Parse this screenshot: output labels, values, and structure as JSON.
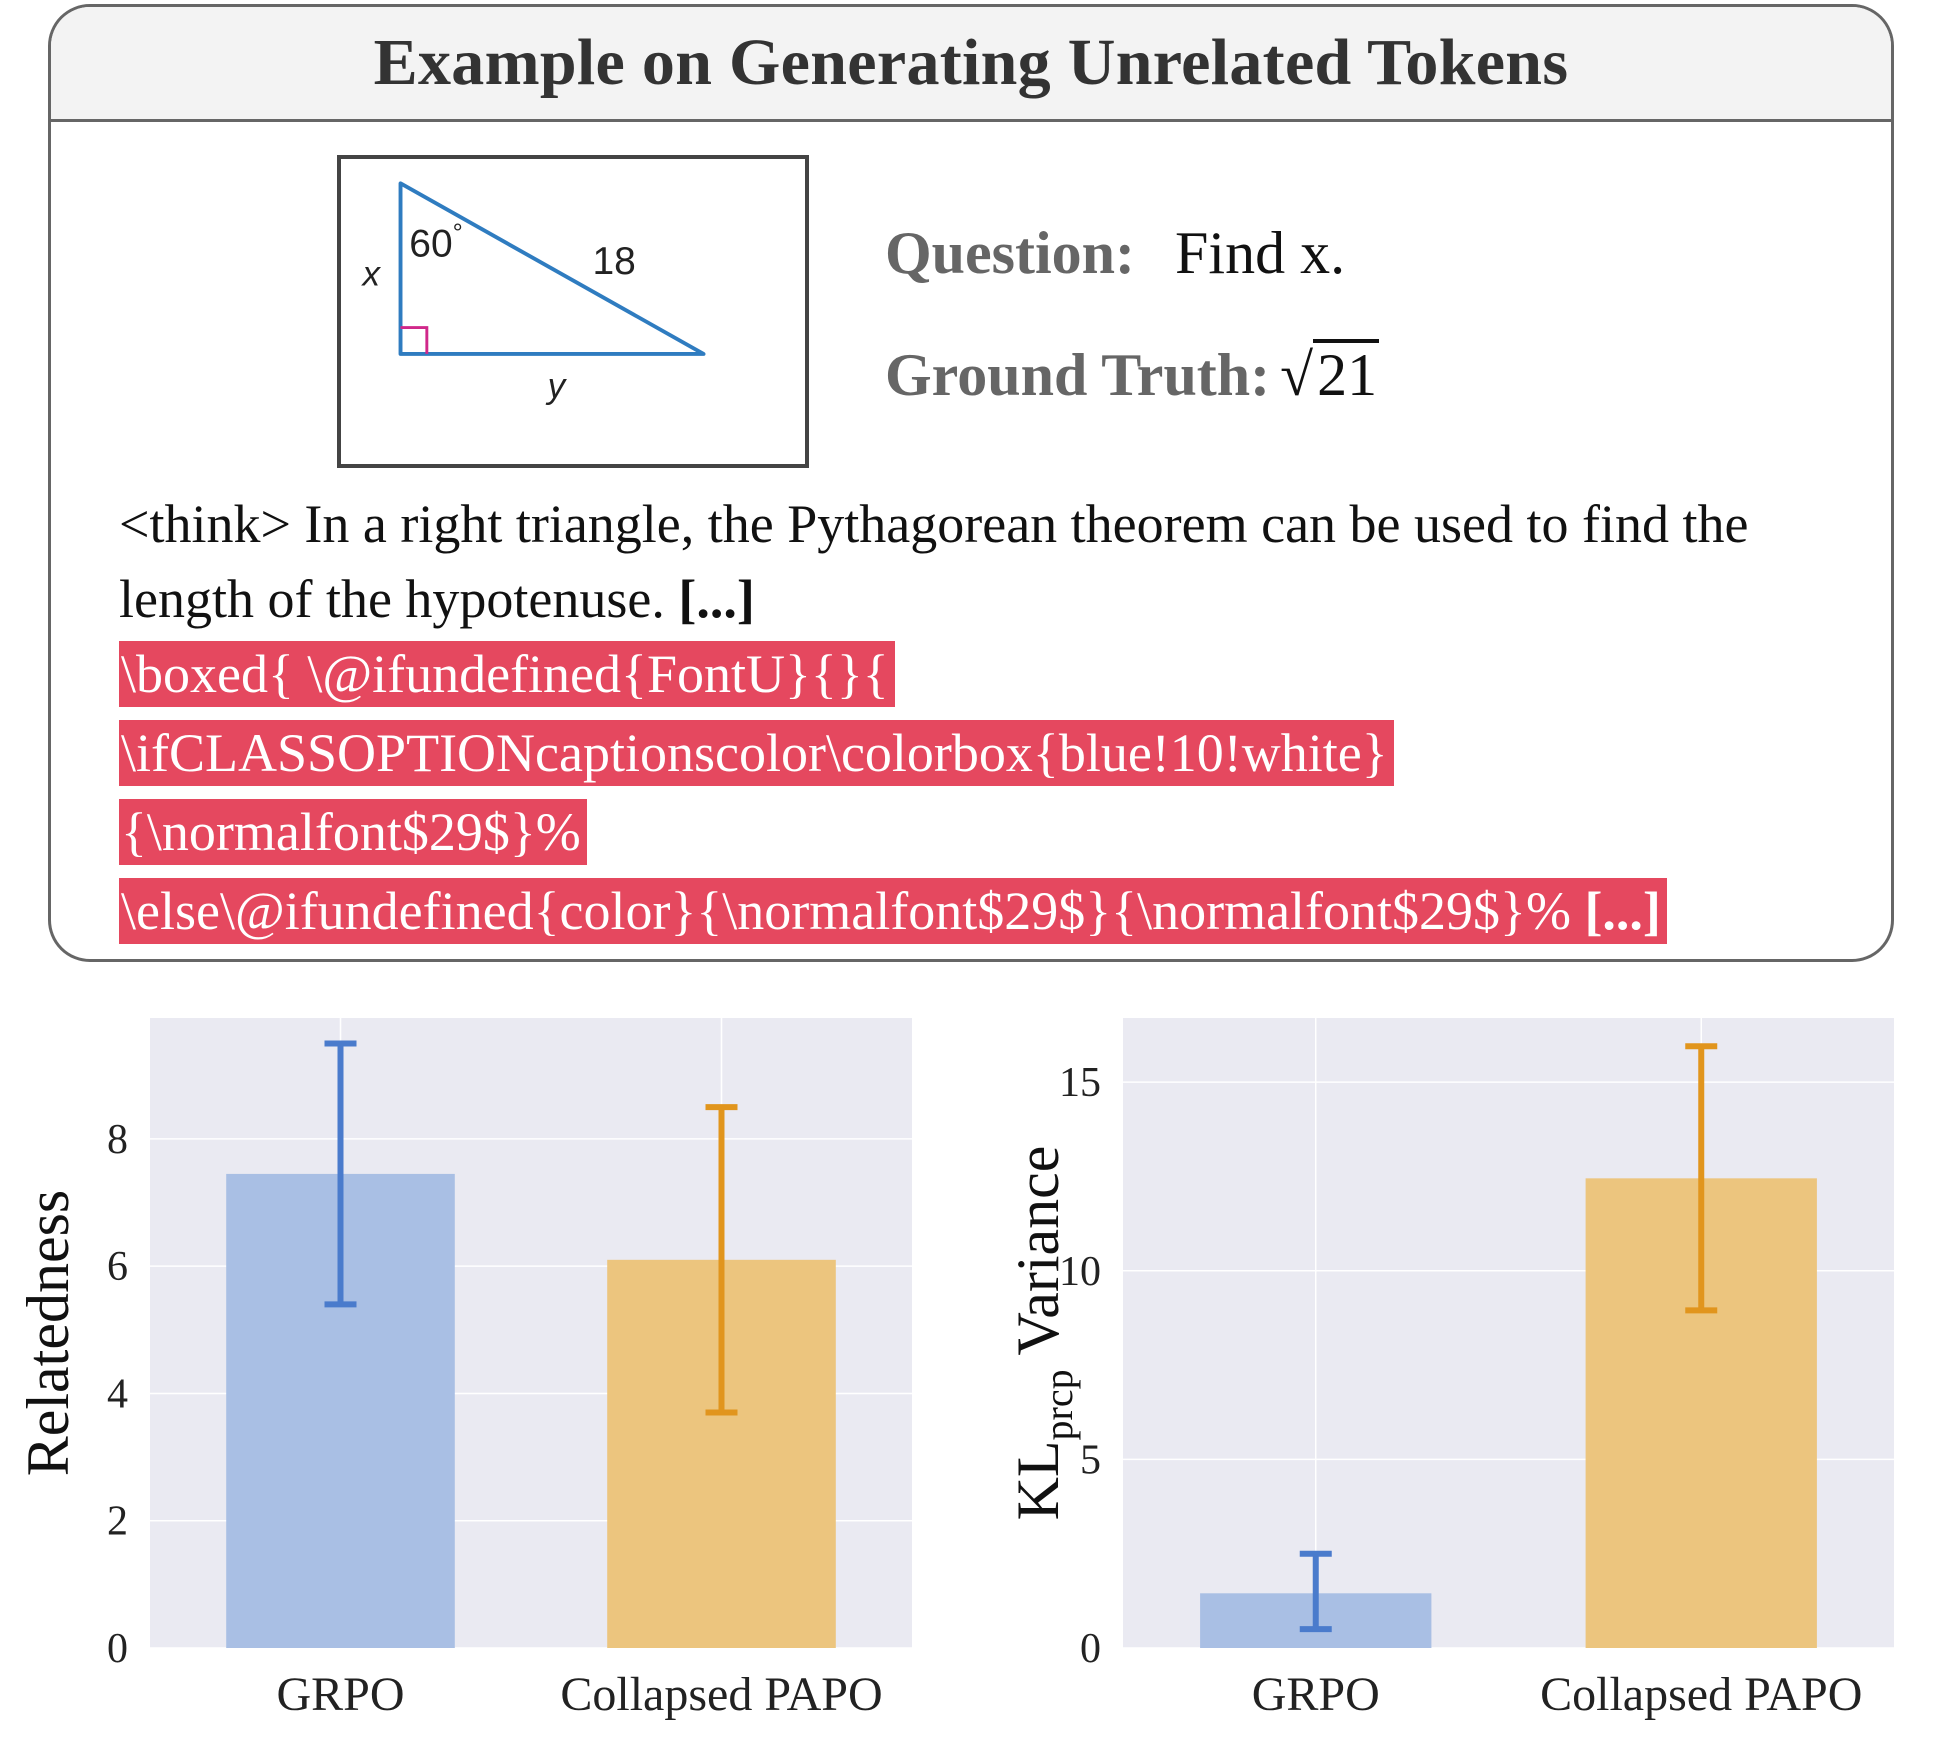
{
  "example": {
    "title": "Example on Generating Unrelated Tokens",
    "figure": {
      "angle_label": "60",
      "degree": "°",
      "hypotenuse_label": "18",
      "side_x": "x",
      "side_y": "y"
    },
    "question_label": "Question:",
    "question_text": "Find x.",
    "ground_truth_label": "Ground Truth:",
    "ground_truth_sqrt": "√",
    "ground_truth_radicand": "21",
    "reasoning_text": "<think> In a right triangle, the Pythagorean theorem can be used to find the length of the hypotenuse.",
    "reasoning_ellipsis": "[...]",
    "code_lines": [
      "\\boxed{ \\@ifundefined{FontU}{}{",
      "\\ifCLASSOPTIONcaptionscolor\\colorbox{blue!10!white}",
      "{\\normalfont$29$}%",
      "\\else\\@ifundefined{color}{\\normalfont$29$}{\\normalfont$29$}%"
    ],
    "code_ellipsis": "[...]"
  },
  "chart_data": [
    {
      "type": "bar",
      "categories": [
        "GRPO",
        "Collapsed PAPO"
      ],
      "values": [
        7.45,
        6.1
      ],
      "error_low": [
        5.4,
        3.7
      ],
      "error_high": [
        9.5,
        8.5
      ],
      "ylabel": "Relatedness",
      "yticks": [
        0,
        2,
        4,
        6,
        8
      ],
      "ylim": [
        0,
        9.9
      ],
      "grid": true,
      "colors": {
        "bars": [
          "#a9bfe4",
          "#ecc57e"
        ],
        "errors": [
          "#4a7bcc",
          "#e1951d"
        ]
      },
      "background": "#eaeaf2"
    },
    {
      "type": "bar",
      "categories": [
        "GRPO",
        "Collapsed PAPO"
      ],
      "values": [
        1.45,
        12.45
      ],
      "error_low": [
        0.5,
        8.95
      ],
      "error_high": [
        2.5,
        15.95
      ],
      "ylabel": "KL",
      "ylabel_subscript": "prcp",
      "ylabel_suffix": "Variance",
      "yticks": [
        0,
        5,
        10,
        15
      ],
      "ylim": [
        0,
        16.7
      ],
      "grid": true,
      "colors": {
        "bars": [
          "#a9bfe4",
          "#ecc57e"
        ],
        "errors": [
          "#4a7bcc",
          "#e1951d"
        ]
      },
      "background": "#eaeaf2"
    }
  ]
}
